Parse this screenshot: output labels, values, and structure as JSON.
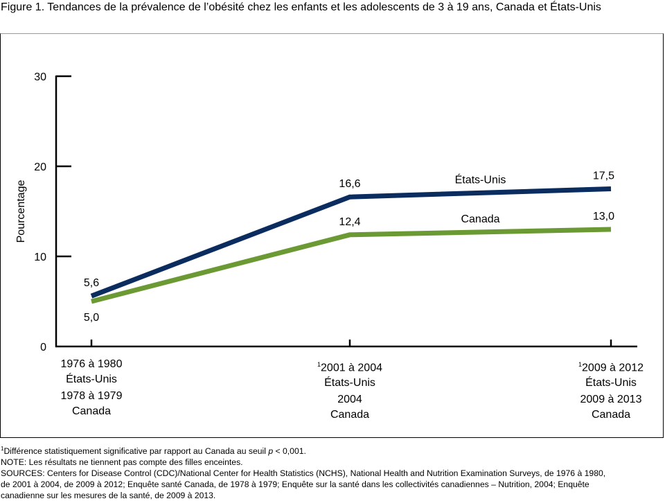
{
  "title": "Figure 1. Tendances de la prévalence de l’obésité chez les enfants et les adolescents de 3 à 19 ans, Canada et États-Unis",
  "chart_data": {
    "type": "line",
    "title": "Figure 1. Tendances de la prévalence de l’obésité chez les enfants et les adolescents de 3 à 19 ans, Canada et États-Unis",
    "ylabel": "Pourcentage",
    "xlabel": "",
    "ylim": [
      0,
      30
    ],
    "yticks": [
      "0",
      "10",
      "20",
      "30"
    ],
    "ytick_values": [
      0,
      10,
      20,
      30
    ],
    "grid": false,
    "categories": [
      {
        "sup": "",
        "us_period": "1976 à 1980",
        "us_label": "États-Unis",
        "ca_period": "1978 à 1979",
        "ca_label": "Canada"
      },
      {
        "sup": "1",
        "us_period": "2001 à 2004",
        "us_label": "États-Unis",
        "ca_period": "2004",
        "ca_label": "Canada"
      },
      {
        "sup": "1",
        "us_period": "2009 à 2012",
        "us_label": "États-Unis",
        "ca_period": "2009 à 2013",
        "ca_label": "Canada"
      }
    ],
    "series": [
      {
        "name": "États-Unis",
        "color": "#0b2c5e",
        "values": [
          5.6,
          16.6,
          17.5
        ],
        "labels": [
          "5,6",
          "16,6",
          "17,5"
        ]
      },
      {
        "name": "Canada",
        "color": "#6b9a35",
        "values": [
          5.0,
          12.4,
          13.0
        ],
        "labels": [
          "5,0",
          "12,4",
          "13,0"
        ]
      }
    ]
  },
  "footnotes": {
    "sig_sup": "1",
    "sig_text_a": "Différence statistiquement significative par rapport au Canada au seuil ",
    "sig_p": "p",
    "sig_text_b": " < 0,001.",
    "note": "NOTE: Les résultats ne tiennent pas compte des filles enceintes.",
    "sources_1": "SOURCES: Centers for Disease Control (CDC)/National Center for Health Statistics (NCHS), National Health and Nutrition Examination Surveys, de 1976 à 1980,",
    "sources_2": "de 2001 à 2004, de 2009 à 2012; Enquête santé Canada, de 1978 à 1979; Enquête sur la santé dans les collectivités canadiennes – Nutrition, 2004; Enquête",
    "sources_3": "canadienne sur les mesures de la santé, de 2009 à 2013."
  }
}
